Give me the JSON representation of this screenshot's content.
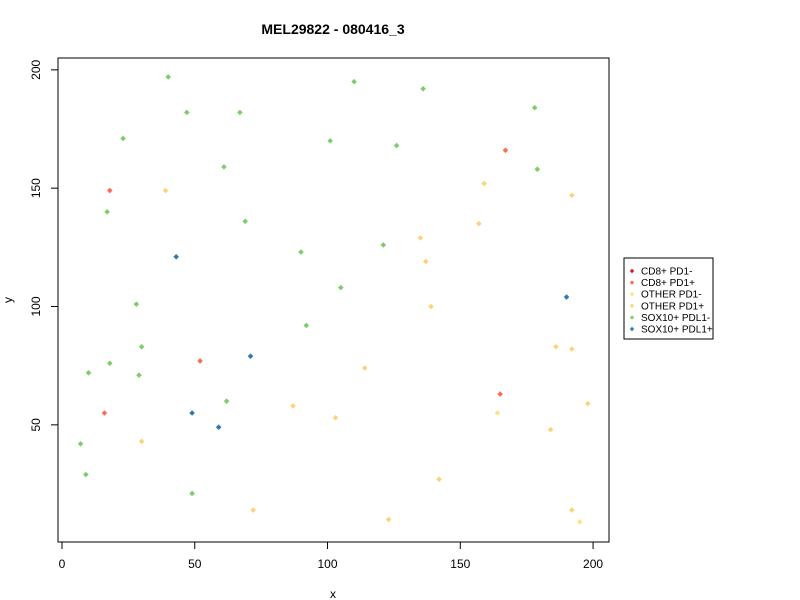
{
  "chart_data": {
    "type": "scatter",
    "title": "MEL29822 - 080416_3",
    "xlabel": "x",
    "ylabel": "y",
    "xlim": [
      -1.5,
      206
    ],
    "ylim": [
      0.5,
      205
    ],
    "xticks": [
      0,
      50,
      100,
      150,
      200
    ],
    "yticks": [
      50,
      100,
      150,
      200
    ],
    "grid": false,
    "legend_position": "right",
    "series": [
      {
        "name": "CD8+ PD1-",
        "color": "#d7191c",
        "points": []
      },
      {
        "name": "CD8+ PD1+",
        "color": "#fc6e4f",
        "points": [
          {
            "x": 18,
            "y": 149
          },
          {
            "x": 52,
            "y": 77
          },
          {
            "x": 16,
            "y": 55
          },
          {
            "x": 167,
            "y": 166
          },
          {
            "x": 165,
            "y": 63
          }
        ]
      },
      {
        "name": "OTHER PD1-",
        "color": "#fee08b",
        "points": [
          {
            "x": 164,
            "y": 55
          },
          {
            "x": 195,
            "y": 9
          }
        ]
      },
      {
        "name": "OTHER PD1+",
        "color": "#fdd37a",
        "points": [
          {
            "x": 39,
            "y": 149
          },
          {
            "x": 30,
            "y": 43
          },
          {
            "x": 72,
            "y": 14
          },
          {
            "x": 87,
            "y": 58
          },
          {
            "x": 103,
            "y": 53
          },
          {
            "x": 114,
            "y": 74
          },
          {
            "x": 123,
            "y": 10
          },
          {
            "x": 135,
            "y": 129
          },
          {
            "x": 137,
            "y": 119
          },
          {
            "x": 139,
            "y": 100
          },
          {
            "x": 142,
            "y": 27
          },
          {
            "x": 157,
            "y": 135
          },
          {
            "x": 159,
            "y": 152
          },
          {
            "x": 184,
            "y": 48
          },
          {
            "x": 186,
            "y": 83
          },
          {
            "x": 192,
            "y": 82
          },
          {
            "x": 192,
            "y": 147
          },
          {
            "x": 192,
            "y": 14
          },
          {
            "x": 198,
            "y": 59
          }
        ]
      },
      {
        "name": "SOX10+ PDL1-",
        "color": "#7fcd6a",
        "points": [
          {
            "x": 40,
            "y": 197
          },
          {
            "x": 47,
            "y": 182
          },
          {
            "x": 23,
            "y": 171
          },
          {
            "x": 67,
            "y": 182
          },
          {
            "x": 61,
            "y": 159
          },
          {
            "x": 17,
            "y": 140
          },
          {
            "x": 69,
            "y": 136
          },
          {
            "x": 101,
            "y": 170
          },
          {
            "x": 110,
            "y": 195
          },
          {
            "x": 126,
            "y": 168
          },
          {
            "x": 136,
            "y": 192
          },
          {
            "x": 178,
            "y": 184
          },
          {
            "x": 179,
            "y": 158
          },
          {
            "x": 90,
            "y": 123
          },
          {
            "x": 121,
            "y": 126
          },
          {
            "x": 105,
            "y": 108
          },
          {
            "x": 28,
            "y": 101
          },
          {
            "x": 92,
            "y": 92
          },
          {
            "x": 30,
            "y": 83
          },
          {
            "x": 10,
            "y": 72
          },
          {
            "x": 18,
            "y": 76
          },
          {
            "x": 29,
            "y": 71
          },
          {
            "x": 62,
            "y": 60
          },
          {
            "x": 7,
            "y": 42
          },
          {
            "x": 9,
            "y": 29
          },
          {
            "x": 49,
            "y": 21
          }
        ]
      },
      {
        "name": "SOX10+ PDL1+",
        "color": "#2c7bb6",
        "points": [
          {
            "x": 43,
            "y": 121
          },
          {
            "x": 71,
            "y": 79
          },
          {
            "x": 49,
            "y": 55
          },
          {
            "x": 59,
            "y": 49
          },
          {
            "x": 190,
            "y": 104
          }
        ]
      }
    ]
  }
}
